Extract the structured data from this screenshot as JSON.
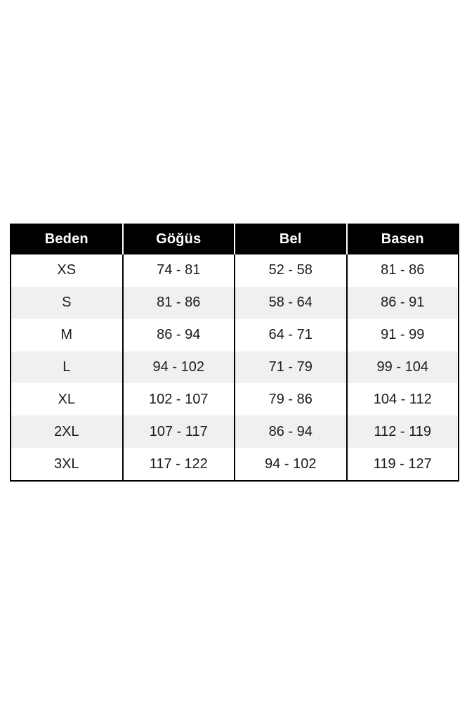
{
  "chart_data": {
    "type": "table",
    "columns": [
      "Beden",
      "Göğüs",
      "Bel",
      "Basen"
    ],
    "rows": [
      [
        "XS",
        "74 - 81",
        "52 - 58",
        "81 - 86"
      ],
      [
        "S",
        "81 - 86",
        "58 - 64",
        "86 - 91"
      ],
      [
        "M",
        "86 - 94",
        "64 - 71",
        "91 - 99"
      ],
      [
        "L",
        "94 - 102",
        "71 - 79",
        "99 - 104"
      ],
      [
        "XL",
        "102 - 107",
        "79 - 86",
        "104 - 112"
      ],
      [
        "2XL",
        "107 - 117",
        "86 - 94",
        "112 - 119"
      ],
      [
        "3XL",
        "117 - 122",
        "94 - 102",
        "119 - 127"
      ]
    ],
    "layout": {
      "grid": "off",
      "striped_rows": true
    }
  },
  "colors": {
    "page_bg": "#ffffff",
    "header_bg": "#000000",
    "header_text": "#ffffff",
    "header_divider": "#ffffff",
    "body_text": "#1c1c1c",
    "body_divider": "#000000",
    "outer_border": "#000000",
    "stripe_bg": "#f0f0ee"
  }
}
